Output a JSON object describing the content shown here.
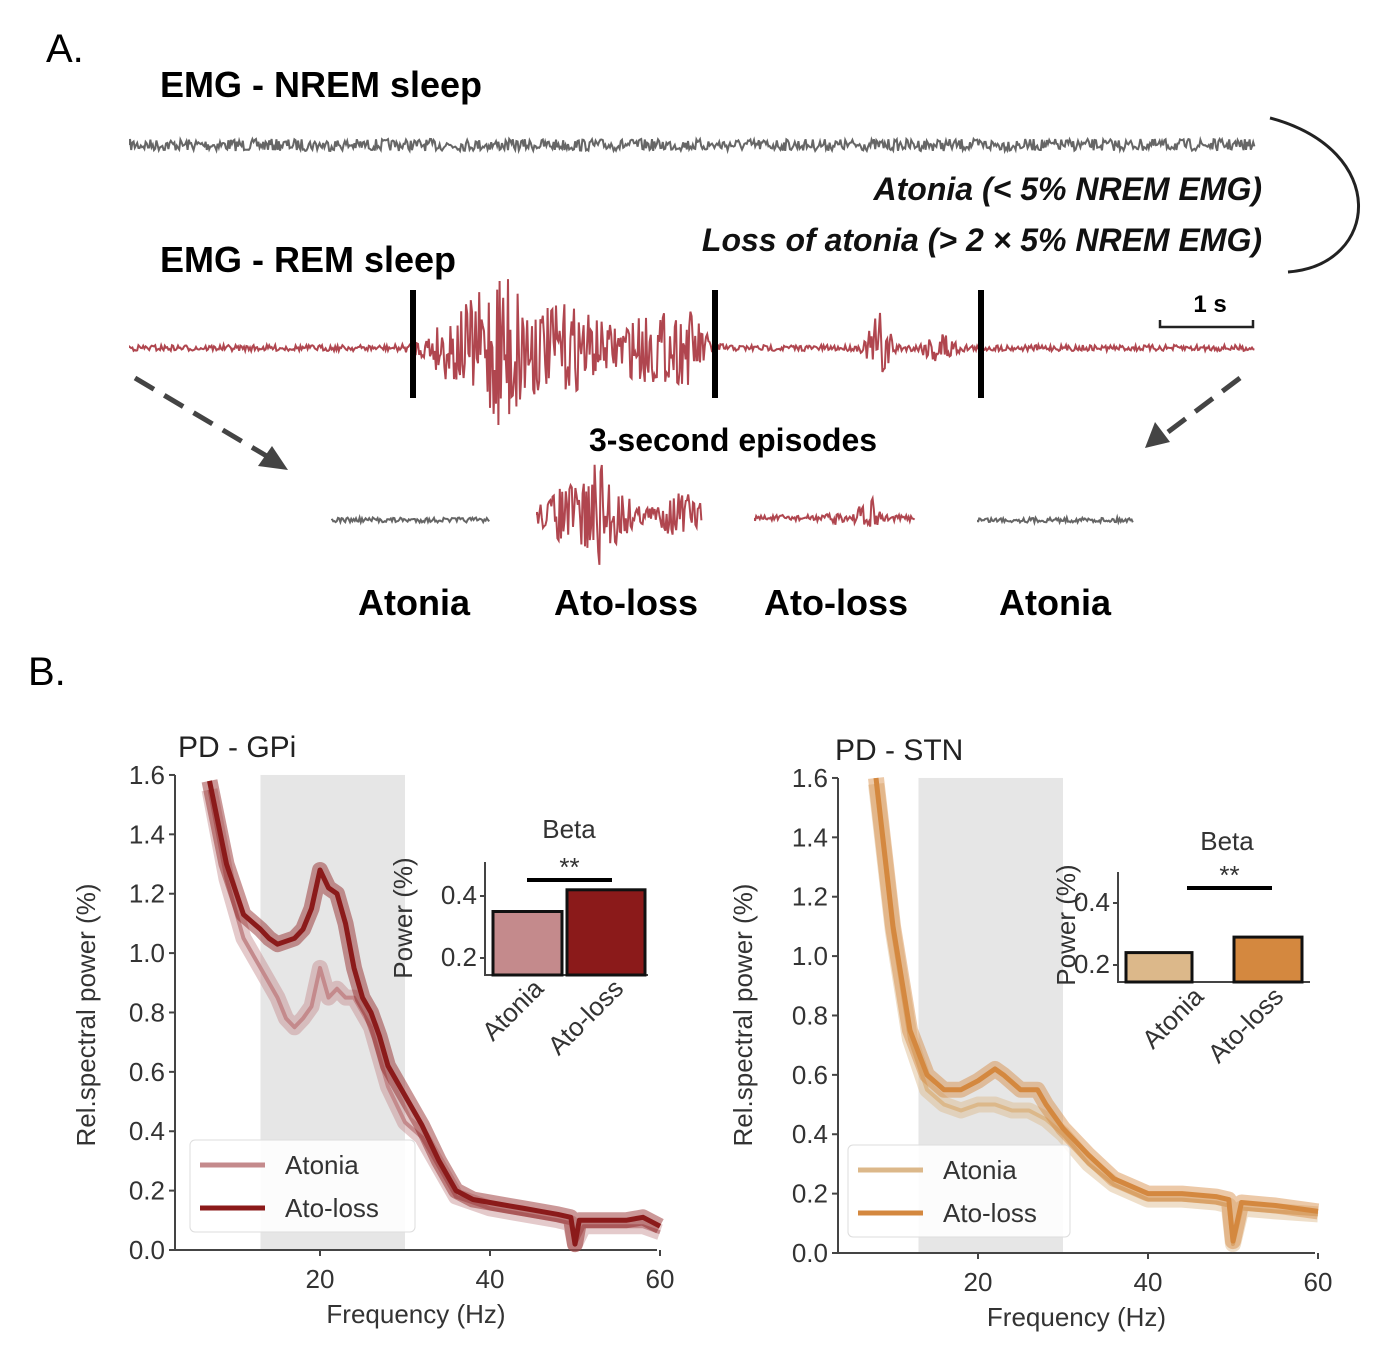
{
  "panel_a": {
    "label": "A.",
    "nrem_title": "EMG - NREM sleep",
    "rem_title": "EMG - REM sleep",
    "rule_atonia": "Atonia (< 5% NREM EMG)",
    "rule_loss": "Loss of atonia (> 2 × 5% NREM EMG)",
    "scale_bar": "1 s",
    "episodes_title": "3-second episodes",
    "episode_labels": [
      "Atonia",
      "Ato-loss",
      "Ato-loss",
      "Atonia"
    ],
    "colors": {
      "nrem": "#666666",
      "rem": "#b0464f",
      "atonia_episode": "#666666"
    }
  },
  "panel_b": {
    "label": "B."
  },
  "chart_data": [
    {
      "type": "line",
      "title": "PD - GPi",
      "xlabel": "Frequency (Hz)",
      "ylabel": "Rel.spectral power (%)",
      "xlim": [
        3,
        60
      ],
      "ylim": [
        0,
        1.6
      ],
      "xticks": [
        "20",
        "40",
        "60"
      ],
      "yticks": [
        "0.0",
        "0.2",
        "0.4",
        "0.6",
        "0.8",
        "1.0",
        "1.2",
        "1.4",
        "1.6"
      ],
      "shaded_band_hz": [
        13,
        30
      ],
      "legend": "bottom-left",
      "series": [
        {
          "name": "Atonia",
          "color": "#c48a8c",
          "x": [
            7,
            9,
            11,
            13,
            15,
            16,
            17,
            18,
            19,
            20,
            21,
            22,
            23,
            24,
            25,
            26,
            27,
            28,
            30,
            32,
            34,
            36,
            40,
            44,
            48,
            49.5,
            50,
            51,
            55,
            58,
            60
          ],
          "y": [
            1.55,
            1.25,
            1.05,
            0.95,
            0.85,
            0.78,
            0.75,
            0.78,
            0.82,
            0.95,
            0.85,
            0.88,
            0.85,
            0.85,
            0.8,
            0.75,
            0.65,
            0.55,
            0.43,
            0.38,
            0.28,
            0.18,
            0.14,
            0.12,
            0.1,
            0.09,
            0.02,
            0.08,
            0.08,
            0.08,
            0.06
          ]
        },
        {
          "name": "Ato-loss",
          "color": "#8b1a1a",
          "x": [
            7,
            9,
            11,
            13,
            14,
            15,
            17,
            18,
            19,
            20,
            21,
            22,
            23,
            24,
            25,
            26,
            27,
            28,
            30,
            32,
            34,
            36,
            38,
            40,
            42,
            44,
            46,
            48,
            49.5,
            50,
            50.5,
            52,
            56,
            58,
            60
          ],
          "y": [
            1.58,
            1.3,
            1.13,
            1.08,
            1.05,
            1.03,
            1.05,
            1.08,
            1.15,
            1.28,
            1.22,
            1.2,
            1.1,
            0.95,
            0.85,
            0.8,
            0.72,
            0.62,
            0.52,
            0.42,
            0.3,
            0.2,
            0.17,
            0.16,
            0.15,
            0.14,
            0.13,
            0.12,
            0.11,
            0.02,
            0.1,
            0.1,
            0.1,
            0.11,
            0.08
          ]
        }
      ],
      "inset": {
        "type": "bar",
        "title": "Beta",
        "ylabel": "Power (%)",
        "yticks": [
          "0.2",
          "0.4"
        ],
        "categories": [
          "Atonia",
          "Ato-loss"
        ],
        "values": [
          0.35,
          0.42
        ],
        "colors": [
          "#c48a8c",
          "#8b1a1a"
        ],
        "significance": "**"
      }
    },
    {
      "type": "line",
      "title": "PD - STN",
      "xlabel": "Frequency (Hz)",
      "ylabel": "Rel.spectral power (%)",
      "xlim": [
        3.5,
        60
      ],
      "ylim": [
        0,
        1.6
      ],
      "xticks": [
        "20",
        "40",
        "60"
      ],
      "yticks": [
        "0.0",
        "0.2",
        "0.4",
        "0.6",
        "0.8",
        "1.0",
        "1.2",
        "1.4",
        "1.6"
      ],
      "shaded_band_hz": [
        13,
        30
      ],
      "legend": "bottom-left",
      "series": [
        {
          "name": "Atonia",
          "color": "#dcb88a",
          "x": [
            8,
            10,
            12,
            14,
            16,
            18,
            20,
            22,
            24,
            26,
            28,
            30,
            33,
            36,
            40,
            44,
            48,
            49.5,
            50,
            51,
            55,
            60
          ],
          "y": [
            1.58,
            1.08,
            0.72,
            0.55,
            0.5,
            0.48,
            0.5,
            0.5,
            0.48,
            0.48,
            0.45,
            0.4,
            0.3,
            0.23,
            0.18,
            0.18,
            0.17,
            0.16,
            0.03,
            0.15,
            0.14,
            0.13
          ]
        },
        {
          "name": "Ato-loss",
          "color": "#d4883f",
          "x": [
            8,
            10,
            12,
            14,
            16,
            18,
            20,
            22,
            23,
            25,
            27,
            28,
            30,
            33,
            36,
            40,
            44,
            48,
            49.5,
            50,
            51,
            55,
            60
          ],
          "y": [
            1.6,
            1.1,
            0.75,
            0.6,
            0.55,
            0.55,
            0.58,
            0.62,
            0.6,
            0.55,
            0.55,
            0.5,
            0.42,
            0.33,
            0.25,
            0.2,
            0.2,
            0.19,
            0.18,
            0.04,
            0.17,
            0.16,
            0.14
          ]
        }
      ],
      "inset": {
        "type": "bar",
        "title": "Beta",
        "ylabel": "Power (%)",
        "yticks": [
          "0.2",
          "0.4"
        ],
        "categories": [
          "Atonia",
          "Ato-loss"
        ],
        "values": [
          0.24,
          0.29
        ],
        "colors": [
          "#dcb88a",
          "#d4883f"
        ],
        "significance": "**"
      }
    }
  ]
}
